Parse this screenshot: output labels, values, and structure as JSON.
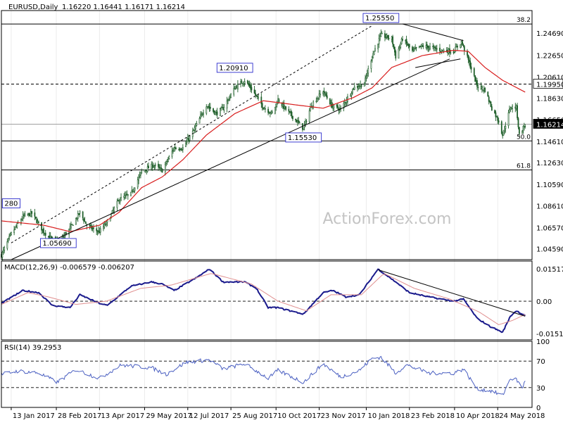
{
  "header": {
    "symbol": "EURUSD,Daily",
    "ohlc": "1.16220 1.16441 1.16171 1.16214"
  },
  "watermark": "ActionForex.com",
  "colors": {
    "background": "#ffffff",
    "grid": "#d0d0d0",
    "candles": "#1f5f2a",
    "ma": "#d81e1e",
    "macd": "#1a1a8c",
    "signal": "#e09090",
    "rsi": "#4a5fc1",
    "trendline": "#000000",
    "label_border": "#2a2acc"
  },
  "chart_data": [
    {
      "type": "candlestick",
      "panel": "price",
      "ylim": [
        1.0359,
        1.268
      ],
      "yticks": [
        "1.24690",
        "1.22650",
        "1.20610",
        "1.18630",
        "1.16650",
        "1.14610",
        "1.12630",
        "1.10590",
        "1.08610",
        "1.06570",
        "1.04590"
      ],
      "current_price": "1.16214",
      "horizontal_levels": [
        {
          "value": 1.2555,
          "style": "solid",
          "label": "38.2"
        },
        {
          "value": 1.1995,
          "style": "dashed",
          "label": "1.19950"
        },
        {
          "value": 1.16214,
          "style": "solid-gray",
          "label": "1.16214"
        },
        {
          "value": 1.1465,
          "style": "solid",
          "label": "50.0"
        },
        {
          "value": 1.1195,
          "style": "solid",
          "label": "61.8"
        }
      ],
      "annotations": [
        {
          "text": "1.25550",
          "x": "2018-01-25",
          "y": 1.2555
        },
        {
          "text": "1.20910",
          "x": "2017-08-29",
          "y": 1.2091
        },
        {
          "text": "1.15530",
          "x": "2017-11-07",
          "y": 1.1553
        },
        {
          "text": "1.05690",
          "x": "2017-03-02",
          "y": 1.0569
        },
        {
          "text": "280",
          "x": "2017-01-13",
          "y": 1.0828
        }
      ],
      "trendlines": [
        {
          "name": "support",
          "from": [
            "2017-01-13",
            1.0359
          ],
          "to": [
            "2018-04-05",
            1.2229
          ]
        },
        {
          "name": "channel",
          "from": [
            "2017-01-13",
            1.0515
          ],
          "to": [
            "2018-01-16",
            1.254
          ]
        },
        {
          "name": "triangle-top",
          "from": [
            "2018-02-16",
            1.2555
          ],
          "to": [
            "2018-04-19",
            1.24
          ]
        },
        {
          "name": "triangle-bottom",
          "from": [
            "2018-03-01",
            1.2149
          ],
          "to": [
            "2018-04-16",
            1.2229
          ]
        }
      ],
      "series_anchors": {
        "close": [
          [
            "2017-01-03",
            1.04
          ],
          [
            "2017-01-13",
            1.06
          ],
          [
            "2017-01-25",
            1.076
          ],
          [
            "2017-02-03",
            1.079
          ],
          [
            "2017-02-15",
            1.062
          ],
          [
            "2017-02-22",
            1.056
          ],
          [
            "2017-03-02",
            1.052
          ],
          [
            "2017-03-14",
            1.065
          ],
          [
            "2017-03-24",
            1.08
          ],
          [
            "2017-03-31",
            1.068
          ],
          [
            "2017-04-07",
            1.064
          ],
          [
            "2017-04-13",
            1.062
          ],
          [
            "2017-04-21",
            1.071
          ],
          [
            "2017-05-03",
            1.092
          ],
          [
            "2017-05-15",
            1.097
          ],
          [
            "2017-05-26",
            1.118
          ],
          [
            "2017-06-07",
            1.124
          ],
          [
            "2017-06-16",
            1.119
          ],
          [
            "2017-06-28",
            1.14
          ],
          [
            "2017-07-07",
            1.14
          ],
          [
            "2017-07-18",
            1.156
          ],
          [
            "2017-07-31",
            1.18
          ],
          [
            "2017-08-10",
            1.172
          ],
          [
            "2017-08-17",
            1.177
          ],
          [
            "2017-08-29",
            1.196
          ],
          [
            "2017-09-08",
            1.203
          ],
          [
            "2017-09-15",
            1.195
          ],
          [
            "2017-09-27",
            1.178
          ],
          [
            "2017-10-06",
            1.172
          ],
          [
            "2017-10-12",
            1.185
          ],
          [
            "2017-10-20",
            1.176
          ],
          [
            "2017-10-31",
            1.165
          ],
          [
            "2017-11-07",
            1.158
          ],
          [
            "2017-11-15",
            1.18
          ],
          [
            "2017-11-27",
            1.193
          ],
          [
            "2017-12-06",
            1.179
          ],
          [
            "2017-12-15",
            1.176
          ],
          [
            "2017-12-28",
            1.196
          ],
          [
            "2018-01-08",
            1.2
          ],
          [
            "2018-01-16",
            1.226
          ],
          [
            "2018-01-25",
            1.245
          ],
          [
            "2018-02-05",
            1.242
          ],
          [
            "2018-02-09",
            1.225
          ],
          [
            "2018-02-16",
            1.242
          ],
          [
            "2018-02-26",
            1.23
          ],
          [
            "2018-03-08",
            1.235
          ],
          [
            "2018-03-19",
            1.233
          ],
          [
            "2018-03-28",
            1.231
          ],
          [
            "2018-04-09",
            1.23
          ],
          [
            "2018-04-17",
            1.239
          ],
          [
            "2018-04-24",
            1.222
          ],
          [
            "2018-05-03",
            1.198
          ],
          [
            "2018-05-11",
            1.194
          ],
          [
            "2018-05-18",
            1.177
          ],
          [
            "2018-05-25",
            1.165
          ],
          [
            "2018-05-29",
            1.152
          ],
          [
            "2018-06-06",
            1.178
          ],
          [
            "2018-06-12",
            1.178
          ],
          [
            "2018-06-15",
            1.152
          ],
          [
            "2018-06-19",
            1.159
          ],
          [
            "2018-06-21",
            1.161
          ]
        ],
        "ma": [
          [
            "2017-01-03",
            1.072
          ],
          [
            "2017-02-15",
            1.068
          ],
          [
            "2017-03-14",
            1.062
          ],
          [
            "2017-04-13",
            1.068
          ],
          [
            "2017-05-03",
            1.08
          ],
          [
            "2017-05-26",
            1.103
          ],
          [
            "2017-06-16",
            1.113
          ],
          [
            "2017-07-07",
            1.129
          ],
          [
            "2017-07-31",
            1.152
          ],
          [
            "2017-08-29",
            1.172
          ],
          [
            "2017-09-27",
            1.184
          ],
          [
            "2017-10-31",
            1.18
          ],
          [
            "2017-11-27",
            1.177
          ],
          [
            "2017-12-28",
            1.187
          ],
          [
            "2018-01-16",
            1.196
          ],
          [
            "2018-02-05",
            1.215
          ],
          [
            "2018-03-08",
            1.226
          ],
          [
            "2018-04-09",
            1.231
          ],
          [
            "2018-04-24",
            1.23
          ],
          [
            "2018-05-11",
            1.215
          ],
          [
            "2018-05-29",
            1.203
          ],
          [
            "2018-06-21",
            1.192
          ]
        ]
      }
    },
    {
      "type": "line",
      "panel": "macd",
      "label": "MACD(12,26,9) -0.006579 -0.006207",
      "ylim": [
        -0.01807,
        0.01876
      ],
      "yticks": [
        "0.015176",
        "0.00",
        "-0.015105"
      ],
      "levels": [
        0.0
      ],
      "trendline": {
        "from": [
          "2018-01-22",
          0.0147
        ],
        "to": [
          "2018-06-21",
          -0.007
        ]
      },
      "series": [
        {
          "name": "MACD",
          "anchors": [
            [
              "2017-01-03",
              -0.001
            ],
            [
              "2017-01-25",
              0.005
            ],
            [
              "2017-02-10",
              0.004
            ],
            [
              "2017-02-24",
              -0.002
            ],
            [
              "2017-03-14",
              -0.003
            ],
            [
              "2017-03-24",
              0.003
            ],
            [
              "2017-04-13",
              -0.001
            ],
            [
              "2017-04-21",
              -0.002
            ],
            [
              "2017-05-15",
              0.007
            ],
            [
              "2017-06-05",
              0.009
            ],
            [
              "2017-06-16",
              0.008
            ],
            [
              "2017-06-28",
              0.005
            ],
            [
              "2017-07-21",
              0.011
            ],
            [
              "2017-08-03",
              0.015
            ],
            [
              "2017-08-17",
              0.009
            ],
            [
              "2017-09-08",
              0.009
            ],
            [
              "2017-09-20",
              0.006
            ],
            [
              "2017-10-02",
              -0.003
            ],
            [
              "2017-10-12",
              -0.003
            ],
            [
              "2017-10-20",
              -0.004
            ],
            [
              "2017-11-07",
              -0.006
            ],
            [
              "2017-11-27",
              0.004
            ],
            [
              "2017-12-07",
              0.005
            ],
            [
              "2017-12-20",
              0.002
            ],
            [
              "2018-01-03",
              0.003
            ],
            [
              "2018-01-22",
              0.015
            ],
            [
              "2018-02-09",
              0.009
            ],
            [
              "2018-02-23",
              0.004
            ],
            [
              "2018-03-15",
              0.002
            ],
            [
              "2018-04-09",
              0.0
            ],
            [
              "2018-04-19",
              0.001
            ],
            [
              "2018-05-03",
              -0.008
            ],
            [
              "2018-05-17",
              -0.012
            ],
            [
              "2018-05-29",
              -0.0145
            ],
            [
              "2018-06-06",
              -0.007
            ],
            [
              "2018-06-12",
              -0.0045
            ],
            [
              "2018-06-21",
              -0.0066
            ]
          ]
        },
        {
          "name": "Signal",
          "anchors": [
            [
              "2017-01-03",
              -0.0015
            ],
            [
              "2017-01-30",
              0.004
            ],
            [
              "2017-02-20",
              0.002
            ],
            [
              "2017-03-20",
              -0.0015
            ],
            [
              "2017-04-20",
              0.0
            ],
            [
              "2017-05-25",
              0.006
            ],
            [
              "2017-06-25",
              0.0075
            ],
            [
              "2017-08-05",
              0.013
            ],
            [
              "2017-09-15",
              0.008
            ],
            [
              "2017-10-12",
              0.0
            ],
            [
              "2017-11-10",
              -0.0045
            ],
            [
              "2017-12-05",
              0.003
            ],
            [
              "2018-01-05",
              0.003
            ],
            [
              "2018-01-28",
              0.013
            ],
            [
              "2018-02-28",
              0.006
            ],
            [
              "2018-04-05",
              0.001
            ],
            [
              "2018-05-05",
              -0.005
            ],
            [
              "2018-05-25",
              -0.011
            ],
            [
              "2018-06-08",
              -0.009
            ],
            [
              "2018-06-21",
              -0.0062
            ]
          ]
        }
      ]
    },
    {
      "type": "line",
      "panel": "rsi",
      "label": "RSI(14) 39.2953",
      "ylim": [
        0,
        100
      ],
      "yticks": [
        "100",
        "70",
        "30",
        "0"
      ],
      "levels": [
        70,
        30
      ],
      "series": [
        {
          "name": "RSI",
          "anchors": [
            [
              "2017-01-03",
              50
            ],
            [
              "2017-01-20",
              55
            ],
            [
              "2017-02-10",
              52
            ],
            [
              "2017-03-01",
              38
            ],
            [
              "2017-03-20",
              57
            ],
            [
              "2017-04-13",
              44
            ],
            [
              "2017-05-05",
              64
            ],
            [
              "2017-06-05",
              60
            ],
            [
              "2017-06-20",
              50
            ],
            [
              "2017-07-10",
              68
            ],
            [
              "2017-08-03",
              72
            ],
            [
              "2017-08-17",
              58
            ],
            [
              "2017-09-08",
              66
            ],
            [
              "2017-10-02",
              44
            ],
            [
              "2017-10-12",
              56
            ],
            [
              "2017-11-07",
              38
            ],
            [
              "2017-11-27",
              66
            ],
            [
              "2017-12-15",
              46
            ],
            [
              "2018-01-03",
              56
            ],
            [
              "2018-01-16",
              74
            ],
            [
              "2018-01-25",
              76
            ],
            [
              "2018-02-09",
              52
            ],
            [
              "2018-02-20",
              64
            ],
            [
              "2018-03-15",
              52
            ],
            [
              "2018-04-09",
              52
            ],
            [
              "2018-04-19",
              58
            ],
            [
              "2018-05-03",
              28
            ],
            [
              "2018-05-17",
              25
            ],
            [
              "2018-05-29",
              18
            ],
            [
              "2018-06-06",
              44
            ],
            [
              "2018-06-12",
              42
            ],
            [
              "2018-06-18",
              30
            ],
            [
              "2018-06-21",
              39.3
            ]
          ]
        }
      ]
    }
  ],
  "x_axis": {
    "range": [
      "2017-01-03",
      "2018-06-28"
    ],
    "ticks": [
      {
        "date": "2017-01-13",
        "label": "13 Jan 2017"
      },
      {
        "date": "2017-02-28",
        "label": "28 Feb 2017"
      },
      {
        "date": "2017-04-13",
        "label": "13 Apr 2017"
      },
      {
        "date": "2017-05-29",
        "label": "29 May 2017"
      },
      {
        "date": "2017-07-12",
        "label": "12 Jul 2017"
      },
      {
        "date": "2017-08-25",
        "label": "25 Aug 2017"
      },
      {
        "date": "2017-10-10",
        "label": "10 Oct 2017"
      },
      {
        "date": "2017-11-23",
        "label": "23 Nov 2017"
      },
      {
        "date": "2018-01-10",
        "label": "10 Jan 2018"
      },
      {
        "date": "2018-02-23",
        "label": "23 Feb 2018"
      },
      {
        "date": "2018-04-10",
        "label": "10 Apr 2018"
      },
      {
        "date": "2018-05-24",
        "label": "24 May 2018"
      }
    ]
  }
}
